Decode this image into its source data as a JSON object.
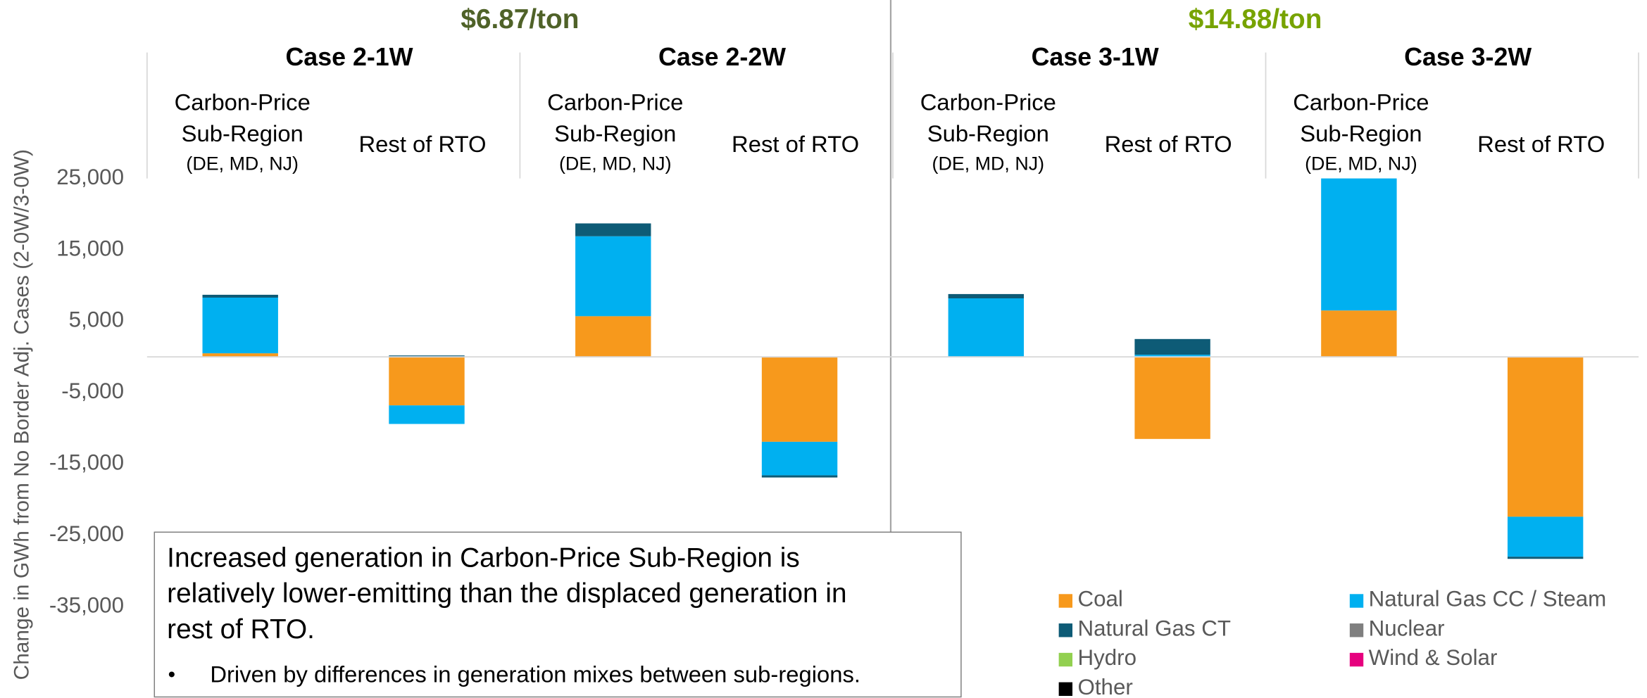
{
  "chart_data": {
    "type": "bar",
    "stacked": true,
    "groups": [
      {
        "title": "$6.87/ton",
        "color": "#4F6228",
        "cases": [
          "Case 2-1W",
          "Case 2-2W"
        ]
      },
      {
        "title": "$14.88/ton",
        "color": "#77A300",
        "cases": [
          "Case 3-1W",
          "Case 3-2W"
        ]
      }
    ],
    "categories": [
      [
        "Carbon-Price",
        "Sub-Region",
        "(DE, MD, NJ)"
      ],
      [
        "Rest of RTO"
      ],
      [
        "Carbon-Price",
        "Sub-Region",
        "(DE, MD, NJ)"
      ],
      [
        "Rest of RTO"
      ],
      [
        "Carbon-Price",
        "Sub-Region",
        "(DE, MD, NJ)"
      ],
      [
        "Rest of RTO"
      ],
      [
        "Carbon-Price",
        "Sub-Region",
        "(DE, MD, NJ)"
      ],
      [
        "Rest of RTO"
      ]
    ],
    "series": [
      {
        "name": "Coal",
        "color": "#F7991C",
        "values": [
          500,
          -6800,
          5700,
          -11900,
          0,
          -11500,
          6500,
          -22400
        ]
      },
      {
        "name": "Natural Gas CC / Steam",
        "color": "#00B0F0",
        "values": [
          7800,
          -2600,
          11200,
          -4700,
          8200,
          300,
          18500,
          -5600
        ]
      },
      {
        "name": "Natural Gas CT",
        "color": "#0E5B76",
        "values": [
          400,
          200,
          1800,
          -300,
          600,
          2200,
          0,
          -300
        ]
      },
      {
        "name": "Nuclear",
        "color": "#7F7F7F",
        "values": [
          0,
          0,
          0,
          0,
          0,
          0,
          0,
          0
        ]
      },
      {
        "name": "Hydro",
        "color": "#92D050",
        "values": [
          0,
          0,
          0,
          0,
          0,
          0,
          0,
          0
        ]
      },
      {
        "name": "Wind & Solar",
        "color": "#E6007E",
        "values": [
          0,
          0,
          0,
          0,
          0,
          0,
          0,
          0
        ]
      },
      {
        "name": "Other",
        "color": "#000000",
        "values": [
          0,
          0,
          0,
          0,
          0,
          0,
          0,
          0
        ]
      }
    ],
    "y_label": "Change in GWh from No Border Adj. Cases (2-0W/3-0W)",
    "ylim": [
      -35000,
      25000
    ],
    "yticks": [
      {
        "value": 25000,
        "label": "25,000"
      },
      {
        "value": 15000,
        "label": "15,000"
      },
      {
        "value": 5000,
        "label": "5,000"
      },
      {
        "value": -5000,
        "label": "-5,000"
      },
      {
        "value": -15000,
        "label": "-15,000"
      },
      {
        "value": -25000,
        "label": "-25,000"
      },
      {
        "value": -35000,
        "label": "-35,000"
      }
    ],
    "annotation": {
      "text": [
        "Increased generation in Carbon-Price Sub-Region is",
        "relatively lower-emitting than the displaced generation in",
        "rest of RTO."
      ],
      "bullet": "Driven by differences in generation mixes between sub-regions."
    }
  }
}
